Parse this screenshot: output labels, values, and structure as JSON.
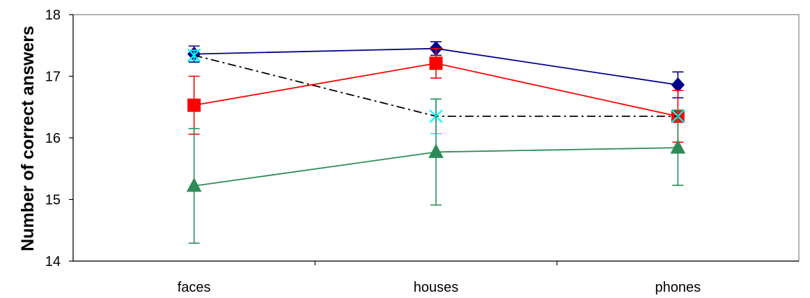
{
  "chart_data": {
    "type": "line",
    "title": "",
    "xlabel": "",
    "ylabel": "Number of correct answers",
    "categories": [
      "faces",
      "houses",
      "phones"
    ],
    "ylim": [
      14,
      18
    ],
    "yticks": [
      14,
      15,
      16,
      17,
      18
    ],
    "grid": false,
    "legend": "none",
    "series": [
      {
        "color": "#00008B",
        "marker": "diamond",
        "linestyle": "solid",
        "values": [
          17.36,
          17.45,
          16.86
        ],
        "error": [
          0.13,
          0.11,
          0.21
        ]
      },
      {
        "color": "#FF0000",
        "marker": "square",
        "linestyle": "solid",
        "values": [
          16.53,
          17.21,
          16.35
        ],
        "error": [
          0.47,
          0.24,
          0.42
        ]
      },
      {
        "color": "#00FFFF",
        "marker": "x",
        "linestyle": "none",
        "line_color": "#000000",
        "line_style": "dash-dot",
        "values": [
          17.34,
          16.35,
          16.35
        ],
        "error": [
          0.08,
          0.28,
          0.0
        ]
      },
      {
        "color": "#2E8B57",
        "marker": "triangle",
        "linestyle": "solid",
        "values": [
          15.22,
          15.77,
          15.84
        ],
        "error": [
          0.93,
          0.86,
          0.61
        ]
      }
    ]
  }
}
